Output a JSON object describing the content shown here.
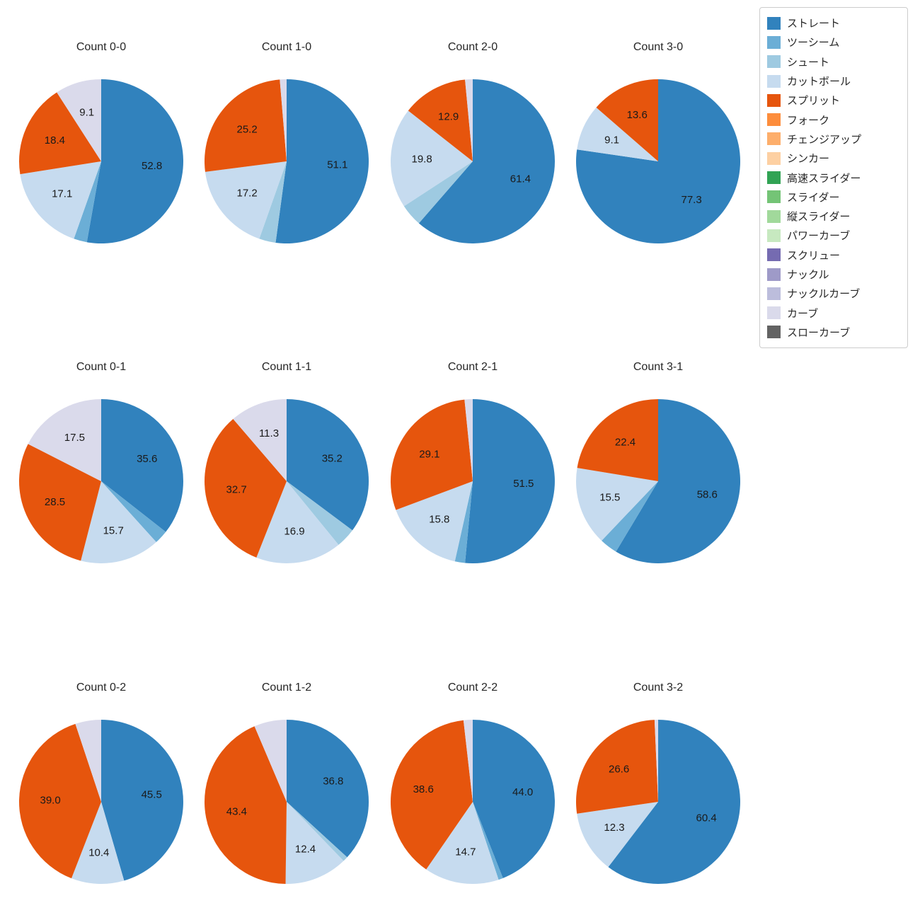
{
  "figure": {
    "background": "#ffffff",
    "text_color": "#262626",
    "label_color": "#1a1a1a"
  },
  "legend": {
    "items": [
      {
        "label": "ストレート",
        "color": "#3182bd"
      },
      {
        "label": "ツーシーム",
        "color": "#6baed6"
      },
      {
        "label": "シュート",
        "color": "#9ecae1"
      },
      {
        "label": "カットボール",
        "color": "#c6dbef"
      },
      {
        "label": "スプリット",
        "color": "#e6550d"
      },
      {
        "label": "フォーク",
        "color": "#fd8d3c"
      },
      {
        "label": "チェンジアップ",
        "color": "#fdae6b"
      },
      {
        "label": "シンカー",
        "color": "#fdd0a2"
      },
      {
        "label": "高速スライダー",
        "color": "#31a354"
      },
      {
        "label": "スライダー",
        "color": "#74c476"
      },
      {
        "label": "縦スライダー",
        "color": "#a1d99b"
      },
      {
        "label": "パワーカーブ",
        "color": "#c7e9c0"
      },
      {
        "label": "スクリュー",
        "color": "#756bb1"
      },
      {
        "label": "ナックル",
        "color": "#9e9ac8"
      },
      {
        "label": "ナックルカーブ",
        "color": "#bcbddc"
      },
      {
        "label": "カーブ",
        "color": "#dadaeb"
      },
      {
        "label": "スローカーブ",
        "color": "#636363"
      }
    ]
  },
  "chart_data": [
    {
      "type": "pie",
      "title": "Count 0-0",
      "start_angle_deg": 0,
      "direction": "clockwise",
      "slices": [
        {
          "label": "ストレート",
          "value": 52.8,
          "pct_label": "52.8"
        },
        {
          "label": "ツーシーム",
          "value": 2.6,
          "pct_label": ""
        },
        {
          "label": "カットボール",
          "value": 17.1,
          "pct_label": "17.1"
        },
        {
          "label": "スプリット",
          "value": 18.4,
          "pct_label": "18.4"
        },
        {
          "label": "カーブ",
          "value": 9.1,
          "pct_label": "9.1"
        }
      ]
    },
    {
      "type": "pie",
      "title": "Count 1-0",
      "start_angle_deg": 0,
      "direction": "clockwise",
      "slices": [
        {
          "label": "ストレート",
          "value": 51.1,
          "pct_label": "51.1"
        },
        {
          "label": "シュート",
          "value": 3.2,
          "pct_label": ""
        },
        {
          "label": "カットボール",
          "value": 17.2,
          "pct_label": "17.2"
        },
        {
          "label": "スプリット",
          "value": 25.2,
          "pct_label": "25.2"
        },
        {
          "label": "カーブ",
          "value": 1.3,
          "pct_label": ""
        }
      ]
    },
    {
      "type": "pie",
      "title": "Count 2-0",
      "start_angle_deg": 0,
      "direction": "clockwise",
      "slices": [
        {
          "label": "ストレート",
          "value": 61.4,
          "pct_label": "61.4"
        },
        {
          "label": "シュート",
          "value": 4.4,
          "pct_label": ""
        },
        {
          "label": "カットボール",
          "value": 19.8,
          "pct_label": "19.8"
        },
        {
          "label": "スプリット",
          "value": 12.9,
          "pct_label": "12.9"
        },
        {
          "label": "カーブ",
          "value": 1.5,
          "pct_label": ""
        }
      ]
    },
    {
      "type": "pie",
      "title": "Count 3-0",
      "start_angle_deg": 0,
      "direction": "clockwise",
      "slices": [
        {
          "label": "ストレート",
          "value": 77.3,
          "pct_label": "77.3"
        },
        {
          "label": "カットボール",
          "value": 9.1,
          "pct_label": "9.1"
        },
        {
          "label": "スプリット",
          "value": 13.6,
          "pct_label": "13.6"
        }
      ]
    },
    {
      "type": "pie",
      "title": "Count 0-1",
      "start_angle_deg": 0,
      "direction": "clockwise",
      "slices": [
        {
          "label": "ストレート",
          "value": 35.6,
          "pct_label": "35.6"
        },
        {
          "label": "ツーシーム",
          "value": 2.7,
          "pct_label": ""
        },
        {
          "label": "カットボール",
          "value": 15.7,
          "pct_label": "15.7"
        },
        {
          "label": "スプリット",
          "value": 28.5,
          "pct_label": "28.5"
        },
        {
          "label": "カーブ",
          "value": 17.5,
          "pct_label": "17.5"
        }
      ]
    },
    {
      "type": "pie",
      "title": "Count 1-1",
      "start_angle_deg": 0,
      "direction": "clockwise",
      "slices": [
        {
          "label": "ストレート",
          "value": 35.2,
          "pct_label": "35.2"
        },
        {
          "label": "シュート",
          "value": 3.9,
          "pct_label": ""
        },
        {
          "label": "カットボール",
          "value": 16.9,
          "pct_label": "16.9"
        },
        {
          "label": "スプリット",
          "value": 32.7,
          "pct_label": "32.7"
        },
        {
          "label": "カーブ",
          "value": 11.3,
          "pct_label": "11.3"
        }
      ]
    },
    {
      "type": "pie",
      "title": "Count 2-1",
      "start_angle_deg": 0,
      "direction": "clockwise",
      "slices": [
        {
          "label": "ストレート",
          "value": 51.5,
          "pct_label": "51.5"
        },
        {
          "label": "ツーシーム",
          "value": 2.0,
          "pct_label": ""
        },
        {
          "label": "カットボール",
          "value": 15.8,
          "pct_label": "15.8"
        },
        {
          "label": "スプリット",
          "value": 29.1,
          "pct_label": "29.1"
        },
        {
          "label": "カーブ",
          "value": 1.6,
          "pct_label": ""
        }
      ]
    },
    {
      "type": "pie",
      "title": "Count 3-1",
      "start_angle_deg": 0,
      "direction": "clockwise",
      "slices": [
        {
          "label": "ストレート",
          "value": 58.6,
          "pct_label": "58.6"
        },
        {
          "label": "ツーシーム",
          "value": 3.5,
          "pct_label": ""
        },
        {
          "label": "カットボール",
          "value": 15.5,
          "pct_label": "15.5"
        },
        {
          "label": "スプリット",
          "value": 22.4,
          "pct_label": "22.4"
        }
      ]
    },
    {
      "type": "pie",
      "title": "Count 0-2",
      "start_angle_deg": 0,
      "direction": "clockwise",
      "slices": [
        {
          "label": "ストレート",
          "value": 45.5,
          "pct_label": "45.5"
        },
        {
          "label": "カットボール",
          "value": 10.4,
          "pct_label": "10.4"
        },
        {
          "label": "スプリット",
          "value": 39.0,
          "pct_label": "39.0"
        },
        {
          "label": "カーブ",
          "value": 5.1,
          "pct_label": ""
        }
      ]
    },
    {
      "type": "pie",
      "title": "Count 1-2",
      "start_angle_deg": 0,
      "direction": "clockwise",
      "slices": [
        {
          "label": "ストレート",
          "value": 36.8,
          "pct_label": "36.8"
        },
        {
          "label": "シュート",
          "value": 1.0,
          "pct_label": ""
        },
        {
          "label": "カットボール",
          "value": 12.4,
          "pct_label": "12.4"
        },
        {
          "label": "スプリット",
          "value": 43.4,
          "pct_label": "43.4"
        },
        {
          "label": "カーブ",
          "value": 6.4,
          "pct_label": ""
        }
      ]
    },
    {
      "type": "pie",
      "title": "Count 2-2",
      "start_angle_deg": 0,
      "direction": "clockwise",
      "slices": [
        {
          "label": "ストレート",
          "value": 44.0,
          "pct_label": "44.0"
        },
        {
          "label": "ツーシーム",
          "value": 0.9,
          "pct_label": ""
        },
        {
          "label": "カットボール",
          "value": 14.7,
          "pct_label": "14.7"
        },
        {
          "label": "スプリット",
          "value": 38.6,
          "pct_label": "38.6"
        },
        {
          "label": "カーブ",
          "value": 1.8,
          "pct_label": ""
        }
      ]
    },
    {
      "type": "pie",
      "title": "Count 3-2",
      "start_angle_deg": 0,
      "direction": "clockwise",
      "slices": [
        {
          "label": "ストレート",
          "value": 60.4,
          "pct_label": "60.4"
        },
        {
          "label": "カットボール",
          "value": 12.3,
          "pct_label": "12.3"
        },
        {
          "label": "スプリット",
          "value": 26.6,
          "pct_label": "26.6"
        },
        {
          "label": "カーブ",
          "value": 0.7,
          "pct_label": ""
        }
      ]
    }
  ]
}
